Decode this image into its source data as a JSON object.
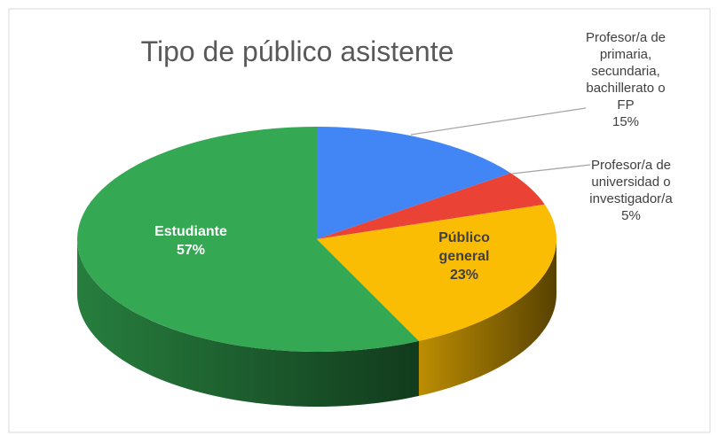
{
  "chart_data": {
    "type": "pie",
    "title": "Tipo de público asistente",
    "categories": [
      "Profesor/a de primaria, secundaria, bachillerato o FP",
      "Profesor/a de universidad o investigador/a",
      "Público general",
      "Estudiante"
    ],
    "values": [
      15,
      5,
      23,
      57
    ],
    "value_labels": [
      "15%",
      "5%",
      "23%",
      "57%"
    ],
    "colors": [
      "#4285f4",
      "#ea4335",
      "#fbbc04",
      "#34a853"
    ]
  }
}
